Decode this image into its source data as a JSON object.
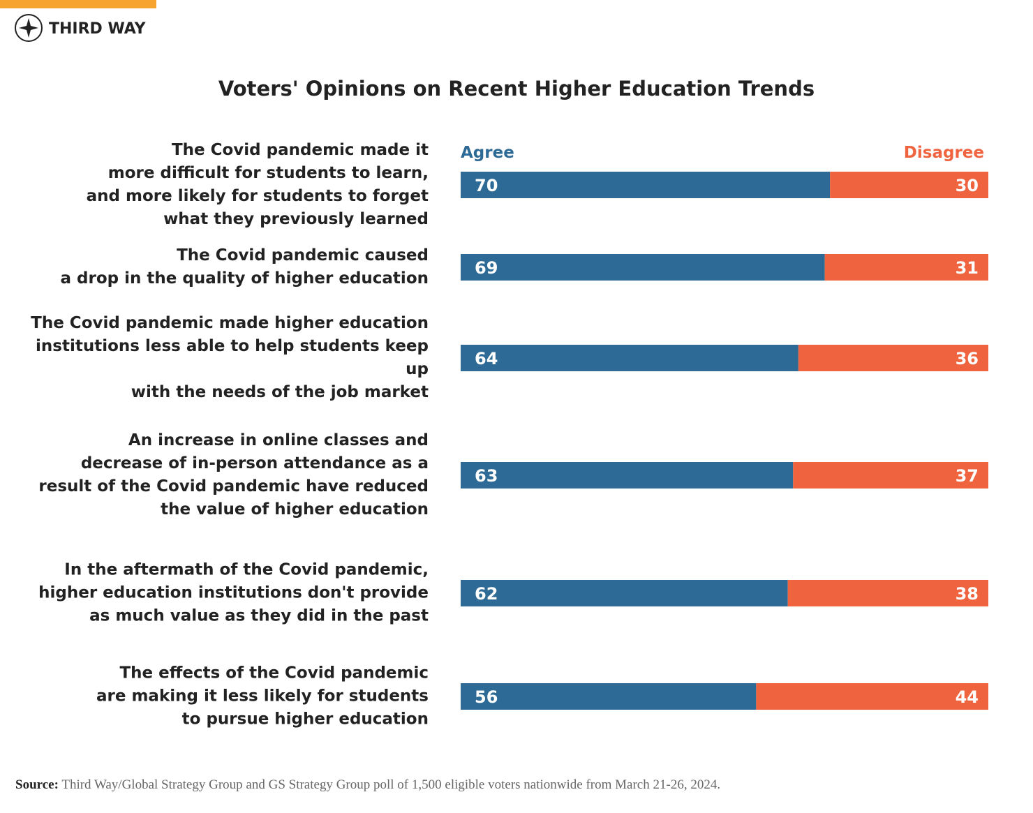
{
  "brand": "THIRD WAY",
  "source": {
    "label": "Source:",
    "text": "Third Way/Global Strategy Group and GS Strategy Group poll of 1,500 eligible voters nationwide from March 21-26, 2024."
  },
  "chart_data": {
    "type": "stacked-barh",
    "title": "Voters' Opinions on Recent Higher Education Trends",
    "categories": [
      "The Covid pandemic made it\nmore difficult for students to learn,\nand more likely for students to forget\nwhat they previously learned",
      "The Covid pandemic caused\na drop in the quality of higher education",
      "The Covid pandemic made higher education\ninstitutions less able to help students keep up\nwith the needs of the job market",
      "An increase in online classes and\ndecrease of in-person attendance as a\nresult of the Covid pandemic have reduced\nthe value of higher education",
      "In the aftermath of the Covid pandemic,\nhigher education institutions don't provide\nas much value as they did in the past",
      "The effects of the Covid pandemic\nare making it less likely for students\nto pursue higher education"
    ],
    "series": [
      {
        "name": "Agree",
        "color": "#2e6a96",
        "values": [
          70,
          69,
          64,
          63,
          62,
          56
        ]
      },
      {
        "name": "Disagree",
        "color": "#ef633e",
        "values": [
          30,
          31,
          36,
          37,
          38,
          44
        ]
      }
    ],
    "xlim": [
      0,
      100
    ]
  }
}
